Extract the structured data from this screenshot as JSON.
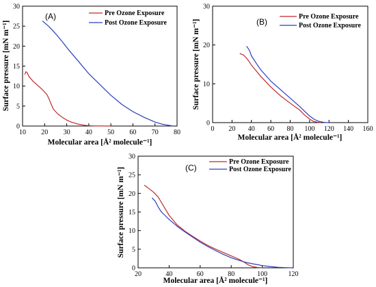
{
  "chart_data": [
    {
      "type": "line",
      "panel_label": "(A)",
      "xlabel": "Molecular area [Å² molecule⁻¹]",
      "ylabel": "Surface pressure [mN m⁻¹]",
      "xlim": [
        10,
        80
      ],
      "ylim": [
        0,
        30
      ],
      "xticks": [
        "10",
        "20",
        "30",
        "40",
        "50",
        "60",
        "70",
        "80"
      ],
      "yticks": [
        "0",
        "5",
        "10",
        "15",
        "20",
        "25",
        "30"
      ],
      "legend_position": "top-right",
      "series": [
        {
          "name": "Pre Ozone Exposure",
          "color": "#c0282d",
          "x": [
            11,
            11.5,
            12,
            13,
            15,
            17,
            19,
            21,
            22,
            23,
            24,
            26,
            28,
            30,
            32,
            35,
            38,
            40,
            42,
            45,
            50
          ],
          "y": [
            12.9,
            13.6,
            13.4,
            12.3,
            11.1,
            10.1,
            9.1,
            7.9,
            6.8,
            5.4,
            4.2,
            3.0,
            2.2,
            1.5,
            1.0,
            0.5,
            0.2,
            0.08,
            0.04,
            0.02,
            0.0
          ]
        },
        {
          "name": "Post Ozone Exposure",
          "color": "#2a3db8",
          "x": [
            19,
            22,
            25,
            28,
            31,
            35,
            40,
            45,
            50,
            55,
            60,
            65,
            70,
            73,
            75,
            77,
            78
          ],
          "y": [
            26.3,
            24.9,
            23.1,
            21.1,
            19.0,
            16.4,
            13.1,
            10.4,
            7.7,
            5.4,
            3.6,
            2.2,
            1.0,
            0.5,
            0.3,
            0.1,
            0.0
          ]
        }
      ]
    },
    {
      "type": "line",
      "panel_label": "(B)",
      "xlabel": "Molecular area [Å² molecule⁻¹]",
      "ylabel": "Surface pressure [mN m⁻¹]",
      "xlim": [
        0,
        160
      ],
      "ylim": [
        0,
        30
      ],
      "xticks": [
        "0",
        "20",
        "40",
        "60",
        "80",
        "100",
        "120",
        "140",
        "160"
      ],
      "yticks": [
        "0",
        "10",
        "20",
        "30"
      ],
      "legend_position": "top-right",
      "series": [
        {
          "name": "Pre Ozone Exposure",
          "color": "#c0282d",
          "x": [
            28,
            32,
            36,
            40,
            50,
            60,
            70,
            80,
            90,
            95,
            100,
            104,
            108,
            112
          ],
          "y": [
            17.8,
            17.4,
            16.3,
            14.8,
            11.8,
            9.2,
            6.9,
            5.0,
            3.2,
            1.9,
            0.9,
            0.3,
            0.1,
            0.0
          ]
        },
        {
          "name": "Post Ozone Exposure",
          "color": "#2a3db8",
          "x": [
            35,
            38,
            40,
            45,
            50,
            55,
            60,
            70,
            80,
            90,
            100,
            105,
            110,
            115,
            120
          ],
          "y": [
            19.7,
            18.6,
            17.2,
            15.3,
            13.5,
            12.1,
            10.7,
            8.5,
            6.3,
            4.1,
            1.7,
            0.8,
            0.3,
            0.05,
            0.0
          ]
        }
      ]
    },
    {
      "type": "line",
      "panel_label": "(C)",
      "xlabel": "Molecular area [Å² molecule⁻¹]",
      "ylabel": "Surface pressure [mN m⁻¹]",
      "xlim": [
        20,
        120
      ],
      "ylim": [
        0,
        30
      ],
      "xticks": [
        "20",
        "40",
        "60",
        "80",
        "100",
        "120"
      ],
      "yticks": [
        "0",
        "5",
        "10",
        "15",
        "20",
        "25",
        "30"
      ],
      "legend_position": "top-right",
      "series": [
        {
          "name": "Pre Ozone Exposure",
          "color": "#c0282d",
          "x": [
            24,
            27,
            30,
            33,
            36,
            40,
            45,
            50,
            55,
            60,
            65,
            70,
            75,
            80,
            85,
            88,
            91,
            94,
            97,
            100
          ],
          "y": [
            22.2,
            21.3,
            20.3,
            19.0,
            16.9,
            14.1,
            11.6,
            9.9,
            8.5,
            7.2,
            6.0,
            5.0,
            4.1,
            3.2,
            2.3,
            1.6,
            0.8,
            0.3,
            0.1,
            0.0
          ]
        },
        {
          "name": "Post Ozone Exposure",
          "color": "#2a3db8",
          "x": [
            29,
            31,
            33,
            35,
            38,
            40,
            45,
            50,
            55,
            60,
            65,
            70,
            75,
            80,
            85,
            90,
            95,
            100,
            105,
            110,
            115,
            119
          ],
          "y": [
            18.8,
            17.9,
            16.3,
            15.0,
            13.8,
            13.0,
            11.2,
            9.7,
            8.3,
            6.9,
            5.7,
            4.6,
            3.6,
            2.7,
            2.0,
            1.4,
            1.0,
            0.6,
            0.35,
            0.15,
            0.05,
            0.0
          ]
        }
      ]
    }
  ]
}
